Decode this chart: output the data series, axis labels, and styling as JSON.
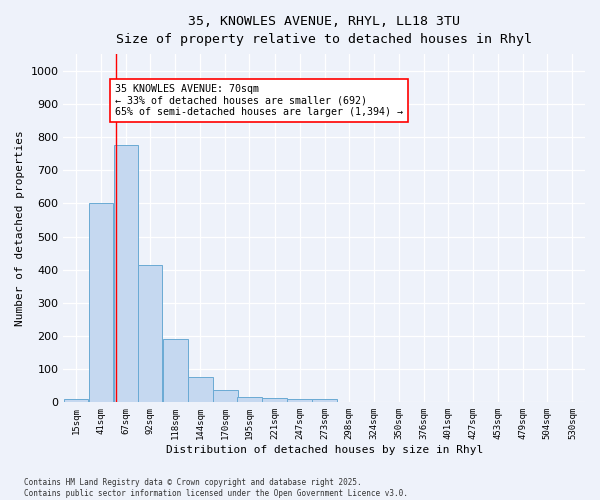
{
  "title_line1": "35, KNOWLES AVENUE, RHYL, LL18 3TU",
  "title_line2": "Size of property relative to detached houses in Rhyl",
  "xlabel": "Distribution of detached houses by size in Rhyl",
  "ylabel": "Number of detached properties",
  "bin_labels": [
    "15sqm",
    "41sqm",
    "67sqm",
    "92sqm",
    "118sqm",
    "144sqm",
    "170sqm",
    "195sqm",
    "221sqm",
    "247sqm",
    "273sqm",
    "298sqm",
    "324sqm",
    "350sqm",
    "376sqm",
    "401sqm",
    "427sqm",
    "453sqm",
    "479sqm",
    "504sqm",
    "530sqm"
  ],
  "bin_edges": [
    15,
    41,
    67,
    92,
    118,
    144,
    170,
    195,
    221,
    247,
    273,
    298,
    324,
    350,
    376,
    401,
    427,
    453,
    479,
    504,
    530
  ],
  "bar_heights": [
    10,
    600,
    775,
    415,
    190,
    75,
    37,
    15,
    12,
    10,
    10,
    0,
    0,
    0,
    0,
    0,
    0,
    0,
    0,
    0
  ],
  "bar_color": "#c5d8f0",
  "bar_edge_color": "#6aaad4",
  "red_line_x": 70,
  "annotation_line1": "35 KNOWLES AVENUE: 70sqm",
  "annotation_line2": "← 33% of detached houses are smaller (692)",
  "annotation_line3": "65% of semi-detached houses are larger (1,394) →",
  "ylim": [
    0,
    1050
  ],
  "yticks": [
    0,
    100,
    200,
    300,
    400,
    500,
    600,
    700,
    800,
    900,
    1000
  ],
  "background_color": "#eef2fa",
  "grid_color": "#ffffff",
  "footer_line1": "Contains HM Land Registry data © Crown copyright and database right 2025.",
  "footer_line2": "Contains public sector information licensed under the Open Government Licence v3.0."
}
